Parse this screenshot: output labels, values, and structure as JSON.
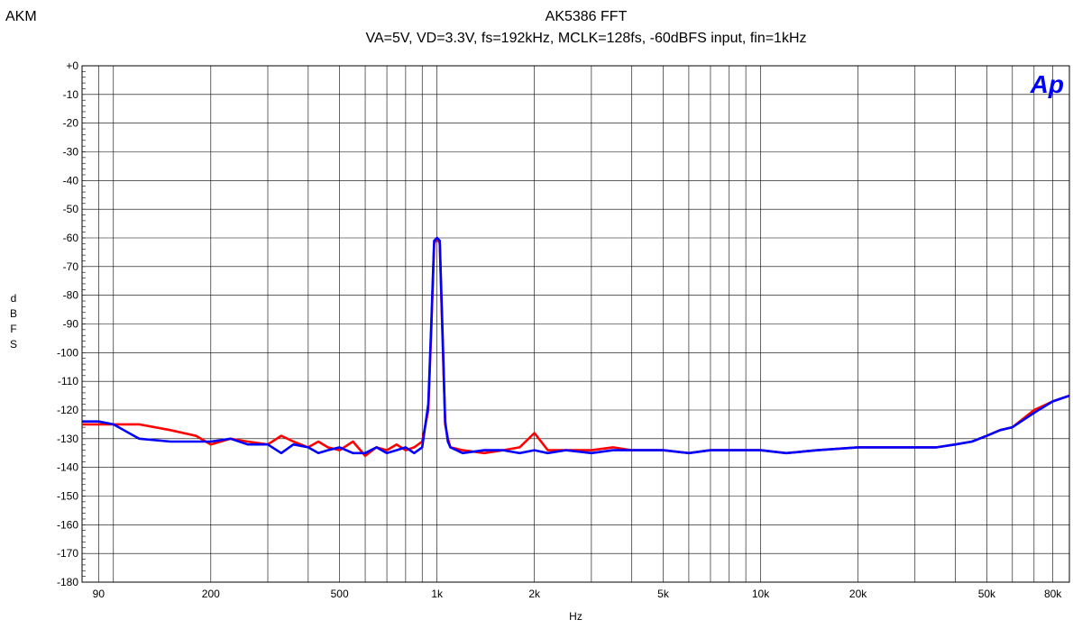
{
  "header": {
    "brand": "AKM",
    "title": "AK5386  FFT",
    "subtitle": "VA=5V, VD=3.3V, fs=192kHz, MCLK=128fs, -60dBFS input, fin=1kHz",
    "logo": "Ap"
  },
  "colors": {
    "grid": "#000000",
    "red_trace": "#ff0000",
    "blue_trace": "#0000ff",
    "logo": "#0000ff"
  },
  "chart_data": {
    "type": "line",
    "title": "AK5386  FFT",
    "subtitle": "VA=5V, VD=3.3V, fs=192kHz, MCLK=128fs, -60dBFS input, fin=1kHz",
    "xlabel": "Hz",
    "ylabel": "dBFS",
    "x_scale": "log",
    "xlim": [
      80,
      90000
    ],
    "ylim": [
      -180,
      0
    ],
    "grid": true,
    "x_ticks": [
      {
        "value": 90,
        "label": "90"
      },
      {
        "value": 200,
        "label": "200"
      },
      {
        "value": 500,
        "label": "500"
      },
      {
        "value": 1000,
        "label": "1k"
      },
      {
        "value": 2000,
        "label": "2k"
      },
      {
        "value": 5000,
        "label": "5k"
      },
      {
        "value": 10000,
        "label": "10k"
      },
      {
        "value": 20000,
        "label": "20k"
      },
      {
        "value": 50000,
        "label": "50k"
      },
      {
        "value": 80000,
        "label": "80k"
      }
    ],
    "y_ticks": [
      {
        "value": 0,
        "label": "+0"
      },
      {
        "value": -10,
        "label": "-10"
      },
      {
        "value": -20,
        "label": "-20"
      },
      {
        "value": -30,
        "label": "-30"
      },
      {
        "value": -40,
        "label": "-40"
      },
      {
        "value": -50,
        "label": "-50"
      },
      {
        "value": -60,
        "label": "-60"
      },
      {
        "value": -70,
        "label": "-70"
      },
      {
        "value": -80,
        "label": "-80"
      },
      {
        "value": -90,
        "label": "-90"
      },
      {
        "value": -100,
        "label": "-100"
      },
      {
        "value": -110,
        "label": "-110"
      },
      {
        "value": -120,
        "label": "-120"
      },
      {
        "value": -130,
        "label": "-130"
      },
      {
        "value": -140,
        "label": "-140"
      },
      {
        "value": -150,
        "label": "-150"
      },
      {
        "value": -160,
        "label": "-160"
      },
      {
        "value": -170,
        "label": "-170"
      },
      {
        "value": -180,
        "label": "-180"
      }
    ],
    "series": [
      {
        "color": "#ff0000",
        "x": [
          80,
          90,
          100,
          120,
          150,
          180,
          200,
          230,
          260,
          300,
          330,
          360,
          400,
          430,
          460,
          500,
          550,
          600,
          650,
          700,
          750,
          800,
          850,
          900,
          940,
          960,
          980,
          1000,
          1020,
          1040,
          1060,
          1080,
          1100,
          1200,
          1400,
          1600,
          1800,
          2000,
          2200,
          2500,
          3000,
          3500,
          4000,
          5000,
          6000,
          7000,
          8000,
          10000,
          12000,
          15000,
          20000,
          25000,
          30000,
          35000,
          40000,
          45000,
          50000,
          55000,
          60000,
          70000,
          80000,
          90000
        ],
        "y": [
          -125,
          -125,
          -125,
          -125,
          -127,
          -129,
          -132,
          -130,
          -131,
          -132,
          -129,
          -131,
          -133,
          -131,
          -133,
          -134,
          -131,
          -136,
          -133,
          -134,
          -132,
          -134,
          -133,
          -131,
          -120,
          -92,
          -62,
          -60,
          -62,
          -95,
          -125,
          -130,
          -133,
          -134,
          -135,
          -134,
          -133,
          -128,
          -134,
          -134,
          -134,
          -133,
          -134,
          -134,
          -135,
          -134,
          -134,
          -134,
          -135,
          -134,
          -133,
          -133,
          -133,
          -133,
          -132,
          -131,
          -129,
          -127,
          -126,
          -120,
          -117,
          -115
        ]
      },
      {
        "color": "#0000ff",
        "x": [
          80,
          90,
          100,
          120,
          150,
          180,
          200,
          230,
          260,
          300,
          330,
          360,
          400,
          430,
          460,
          500,
          550,
          600,
          650,
          700,
          750,
          800,
          850,
          900,
          940,
          960,
          980,
          1000,
          1020,
          1040,
          1060,
          1080,
          1100,
          1200,
          1400,
          1600,
          1800,
          2000,
          2200,
          2500,
          3000,
          3500,
          4000,
          5000,
          6000,
          7000,
          8000,
          10000,
          12000,
          15000,
          20000,
          25000,
          30000,
          35000,
          40000,
          45000,
          50000,
          55000,
          60000,
          70000,
          80000,
          90000
        ],
        "y": [
          -124,
          -124,
          -125,
          -130,
          -131,
          -131,
          -131,
          -130,
          -132,
          -132,
          -135,
          -132,
          -133,
          -135,
          -134,
          -133,
          -135,
          -135,
          -133,
          -135,
          -134,
          -133,
          -135,
          -133,
          -118,
          -90,
          -61,
          -60,
          -61,
          -93,
          -124,
          -131,
          -133,
          -135,
          -134,
          -134,
          -135,
          -134,
          -135,
          -134,
          -135,
          -134,
          -134,
          -134,
          -135,
          -134,
          -134,
          -134,
          -135,
          -134,
          -133,
          -133,
          -133,
          -133,
          -132,
          -131,
          -129,
          -127,
          -126,
          -121,
          -117,
          -115
        ]
      }
    ]
  }
}
